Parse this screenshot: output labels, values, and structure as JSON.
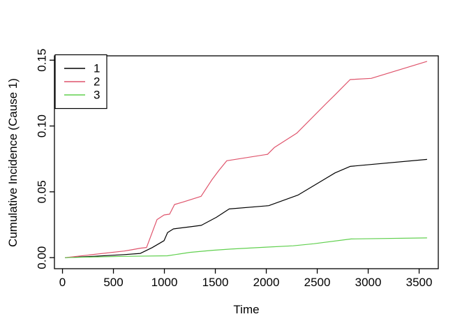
{
  "figure": {
    "background": "#ffffff",
    "frame_color": "#000000"
  },
  "chart_data": {
    "type": "line",
    "title": "",
    "xlabel": "Time",
    "ylabel": "Cumulative Incidence (Cause 1)",
    "x_ticks": [
      0,
      500,
      1000,
      1500,
      2000,
      2500,
      3000,
      3500
    ],
    "x_tick_labels": [
      "0",
      "500",
      "1000",
      "1500",
      "2000",
      "2500",
      "3000",
      "3500"
    ],
    "y_ticks": [
      0,
      0.05,
      0.1,
      0.15
    ],
    "y_tick_labels": [
      "0.00",
      "0.05",
      "0.10",
      "0.15"
    ],
    "x_range": [
      -79,
      3688
    ],
    "y_range": [
      -0.0084,
      0.1533
    ],
    "grid": false,
    "box": true,
    "legend": {
      "position": "top-left",
      "border": true,
      "entries": [
        "1",
        "2",
        "3"
      ]
    },
    "series": [
      {
        "name": "1",
        "color": "#000000",
        "points": [
          [
            25,
            0
          ],
          [
            300,
            0.001
          ],
          [
            606,
            0.0023
          ],
          [
            764,
            0.0032
          ],
          [
            880,
            0.0076
          ],
          [
            997,
            0.0129
          ],
          [
            1031,
            0.019
          ],
          [
            1088,
            0.0218
          ],
          [
            1271,
            0.0236
          ],
          [
            1362,
            0.0245
          ],
          [
            1510,
            0.0306
          ],
          [
            1636,
            0.037
          ],
          [
            2024,
            0.0395
          ],
          [
            2310,
            0.0475
          ],
          [
            2675,
            0.0644
          ],
          [
            2823,
            0.0693
          ],
          [
            3578,
            0.0746
          ]
        ]
      },
      {
        "name": "2",
        "color": "#DF536B",
        "points": [
          [
            25,
            0
          ],
          [
            606,
            0.005
          ],
          [
            675,
            0.0059
          ],
          [
            764,
            0.0072
          ],
          [
            825,
            0.0077
          ],
          [
            928,
            0.0289
          ],
          [
            997,
            0.0324
          ],
          [
            1051,
            0.033
          ],
          [
            1100,
            0.0404
          ],
          [
            1181,
            0.0422
          ],
          [
            1360,
            0.0466
          ],
          [
            1465,
            0.059
          ],
          [
            1533,
            0.0661
          ],
          [
            1613,
            0.0736
          ],
          [
            2013,
            0.0785
          ],
          [
            2081,
            0.0838
          ],
          [
            2298,
            0.0945
          ],
          [
            2583,
            0.1167
          ],
          [
            2675,
            0.1237
          ],
          [
            2823,
            0.1353
          ],
          [
            3029,
            0.1362
          ],
          [
            3578,
            0.1491
          ]
        ]
      },
      {
        "name": "3",
        "color": "#61D04F",
        "points": [
          [
            25,
            0
          ],
          [
            300,
            0.0005
          ],
          [
            606,
            0.001
          ],
          [
            1030,
            0.0014
          ],
          [
            1250,
            0.004
          ],
          [
            1476,
            0.0056
          ],
          [
            1650,
            0.0065
          ],
          [
            2000,
            0.008
          ],
          [
            2264,
            0.009
          ],
          [
            2469,
            0.0106
          ],
          [
            2832,
            0.0142
          ],
          [
            3578,
            0.015
          ]
        ]
      }
    ]
  }
}
